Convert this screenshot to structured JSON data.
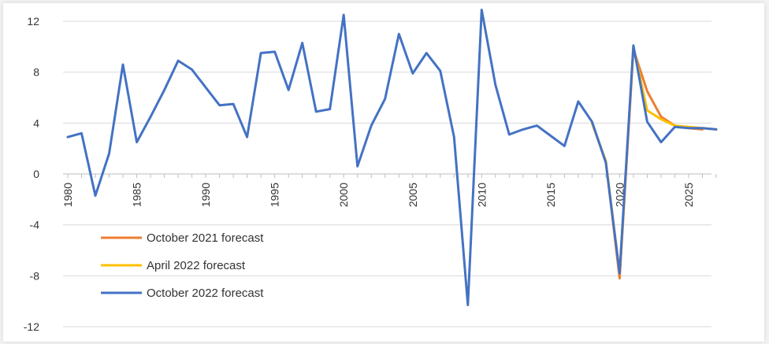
{
  "chart_data": {
    "type": "line",
    "title": "",
    "xlabel": "",
    "ylabel": "",
    "xlim": [
      1980,
      2027
    ],
    "ylim": [
      -12,
      12
    ],
    "y_ticks": [
      12,
      8,
      4,
      0,
      -4,
      -8,
      -12
    ],
    "x_ticks": [
      1980,
      1985,
      1990,
      1995,
      2000,
      2005,
      2010,
      2015,
      2020,
      2025
    ],
    "grid": "horizontal",
    "legend_position": "lower-left",
    "series": [
      {
        "name": "October 2021 forecast",
        "color": "#ed7d31",
        "x": [
          2018,
          2019,
          2020,
          2021,
          2022,
          2023,
          2024,
          2025,
          2026
        ],
        "values": [
          4.0,
          1.0,
          -8.2,
          9.8,
          6.5,
          4.5,
          3.8,
          3.6,
          3.5
        ]
      },
      {
        "name": "April 2022 forecast",
        "color": "#ffc000",
        "x": [
          2018,
          2019,
          2020,
          2021,
          2022,
          2023,
          2024,
          2025,
          2026,
          2027
        ],
        "values": [
          4.0,
          1.0,
          -7.8,
          10.0,
          5.0,
          4.3,
          3.8,
          3.7,
          3.6,
          3.5
        ]
      },
      {
        "name": "October 2022 forecast",
        "color": "#4472c4",
        "x": [
          1980,
          1981,
          1982,
          1983,
          1984,
          1985,
          1986,
          1987,
          1988,
          1989,
          1990,
          1991,
          1992,
          1993,
          1994,
          1995,
          1996,
          1997,
          1998,
          1999,
          2000,
          2001,
          2002,
          2003,
          2004,
          2005,
          2006,
          2007,
          2008,
          2009,
          2010,
          2011,
          2012,
          2013,
          2014,
          2015,
          2016,
          2017,
          2018,
          2019,
          2020,
          2021,
          2022,
          2023,
          2024,
          2025,
          2026,
          2027
        ],
        "values": [
          2.9,
          3.2,
          -1.7,
          1.6,
          8.6,
          2.5,
          4.5,
          6.6,
          8.9,
          8.2,
          6.8,
          5.4,
          5.5,
          2.9,
          9.5,
          9.6,
          6.6,
          10.3,
          4.9,
          5.1,
          12.5,
          0.6,
          3.8,
          5.9,
          11.0,
          7.9,
          9.5,
          8.1,
          2.9,
          -10.3,
          12.9,
          7.0,
          3.1,
          3.5,
          3.8,
          3.0,
          2.2,
          5.7,
          4.1,
          0.9,
          -7.8,
          10.1,
          4.1,
          2.5,
          3.7,
          3.6,
          3.6,
          3.5
        ]
      }
    ]
  }
}
